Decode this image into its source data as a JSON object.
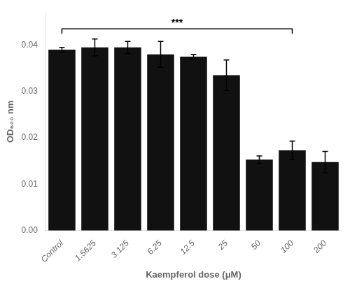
{
  "chart_data": {
    "type": "bar",
    "categories": [
      "Control",
      "1.5625",
      "3.125",
      "6.25",
      "12.5",
      "25",
      "50",
      "100",
      "200"
    ],
    "values": [
      0.039,
      0.0395,
      0.0395,
      0.038,
      0.0375,
      0.0335,
      0.0153,
      0.0173,
      0.0148
    ],
    "errors": [
      0.0005,
      0.0018,
      0.0013,
      0.0028,
      0.0005,
      0.0033,
      0.0008,
      0.002,
      0.0023
    ],
    "color": "#111111",
    "xlabel": "Kaempferol dose (μM)",
    "ylabel": "OD₆₀₀ nm",
    "ylim": [
      0.0,
      0.047
    ],
    "yticks": [
      {
        "value": 0,
        "label": "0.00"
      },
      0.01,
      0.02,
      0.03,
      0.04
    ],
    "grid": false,
    "annotations": [
      {
        "text": "***",
        "from": "Control",
        "to": "100",
        "y": 0.0435
      }
    ]
  }
}
